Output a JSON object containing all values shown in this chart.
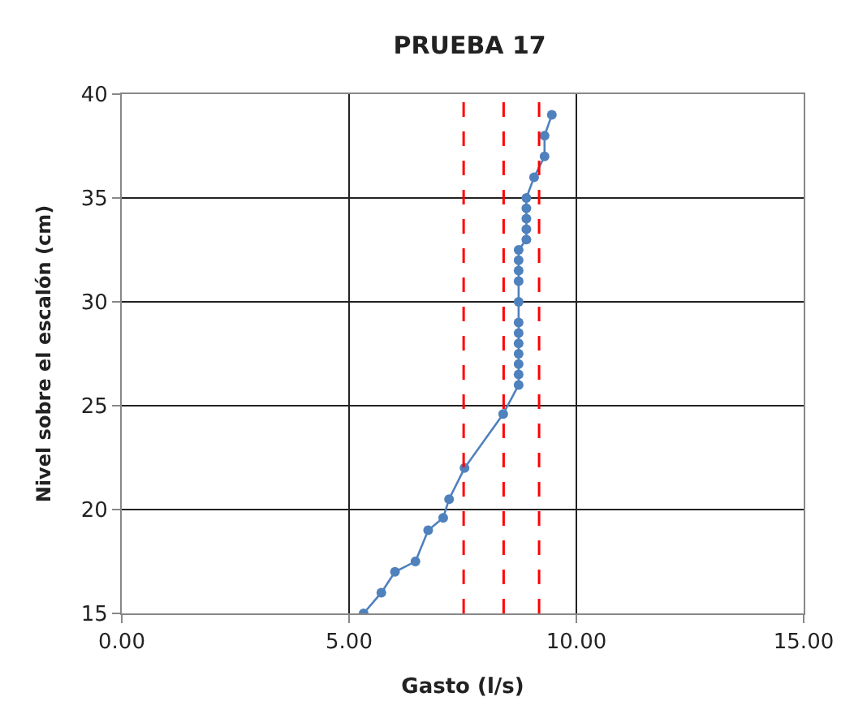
{
  "chart_data": {
    "type": "line",
    "title": "PRUEBA 17",
    "xlabel": "Gasto (l/s)",
    "ylabel": "Nivel sobre el escalón (cm)",
    "x": [
      5.32,
      5.71,
      6.01,
      6.46,
      6.74,
      7.07,
      7.2,
      7.54,
      8.39,
      8.73,
      8.73,
      8.73,
      8.73,
      8.73,
      8.73,
      8.73,
      8.73,
      8.73,
      8.73,
      8.73,
      8.73,
      8.9,
      8.9,
      8.9,
      8.9,
      8.9,
      9.07,
      9.3,
      9.3,
      9.46
    ],
    "series": [
      {
        "color": "#4f81bd",
        "values": [
          15,
          16,
          17,
          17.5,
          19,
          19.6,
          20.5,
          22,
          24.6,
          26,
          26.5,
          27,
          27.5,
          28,
          28.5,
          29,
          30,
          31,
          31.5,
          32,
          32.5,
          33,
          33.5,
          34,
          34.5,
          35,
          36,
          37,
          38,
          39
        ]
      }
    ],
    "xlim": [
      0,
      15
    ],
    "xticks": [
      {
        "value": 0,
        "label": "0.00"
      },
      {
        "value": 5,
        "label": "5.00"
      },
      {
        "value": 10,
        "label": "10.00"
      },
      {
        "value": 15,
        "label": "15.00"
      }
    ],
    "ylim": [
      15,
      40
    ],
    "yticks": [
      15,
      20,
      25,
      30,
      35,
      40
    ],
    "ref_lines": [
      {
        "axis": "x",
        "value": 7.52,
        "color": "#ff0000",
        "line_style": "dashed"
      },
      {
        "axis": "x",
        "value": 8.4,
        "color": "#ff0000",
        "line_style": "dashed"
      },
      {
        "axis": "x",
        "value": 9.18,
        "color": "#ff0000",
        "line_style": "dashed"
      }
    ],
    "grid": true,
    "marker": "circle",
    "line_style": "solid"
  }
}
